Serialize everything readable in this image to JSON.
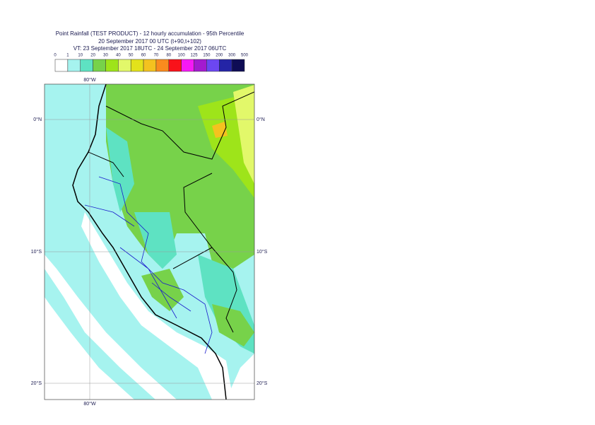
{
  "header": {
    "title": "Point Rainfall (TEST PRODUCT) - 12 hourly accumulation - 95th Percentile",
    "run": "20 September 2017 00 UTC (t+90,t+102)",
    "validity": "VT: 23 September 2017 18UTC - 24 September 2017 06UTC"
  },
  "legend": {
    "thresholds": [
      "0",
      "1",
      "10",
      "20",
      "30",
      "40",
      "50",
      "60",
      "70",
      "80",
      "100",
      "125",
      "150",
      "200",
      "300",
      "500"
    ],
    "colors": [
      "#ffffff",
      "#a6f3ef",
      "#5ee2c2",
      "#77d24a",
      "#9ee41a",
      "#e2f86a",
      "#e3e21b",
      "#f4c21f",
      "#fa8b1e",
      "#f9121a",
      "#f619f5",
      "#a31bcf",
      "#6c47f2",
      "#2424a6",
      "#0e0c55"
    ]
  },
  "map": {
    "lon_labels": [
      "80°W"
    ],
    "lat_labels": [
      "0°N",
      "10°S",
      "20°S"
    ]
  }
}
